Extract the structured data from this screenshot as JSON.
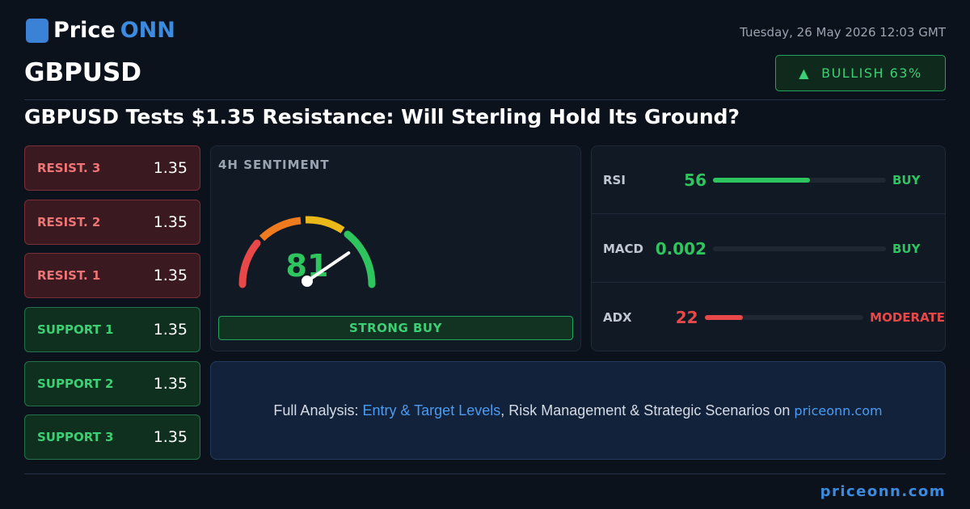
{
  "logo": {
    "prefix": "Price",
    "suffix": "ONN"
  },
  "date": "Tuesday, 26 May 2026 12:03 GMT",
  "symbol": "GBPUSD",
  "badge": "BULLISH 63%",
  "headline": "GBPUSD Tests $1.35 Resistance: Will Sterling Hold Its Ground?",
  "levels": [
    {
      "label": "RESIST. 3",
      "value": 1.35
    },
    {
      "label": "RESIST. 2",
      "value": 1.35
    },
    {
      "label": "RESIST. 1",
      "value": 1.35
    },
    {
      "label": "SUPPORT 1",
      "value": 1.35
    },
    {
      "label": "SUPPORT 2",
      "value": 1.35
    },
    {
      "label": "SUPPORT 3",
      "value": 1.35
    }
  ],
  "sentiment": {
    "title": "4H SENTIMENT",
    "score": 81,
    "verdict": "STRONG BUY"
  },
  "indicators": [
    {
      "name": "RSI",
      "value": 56,
      "signal": "BUY"
    },
    {
      "name": "MACD",
      "value": 0.002,
      "signal": "BUY"
    },
    {
      "name": "ADX",
      "value": 22,
      "signal": "MODERATE"
    }
  ],
  "footer": {
    "lead": "Full Analysis: ",
    "link": "Entry & Target Levels",
    "middle": ", Risk Management & Strategic Scenarios on ",
    "site": "priceonn.com"
  },
  "site": "priceonn.com"
}
